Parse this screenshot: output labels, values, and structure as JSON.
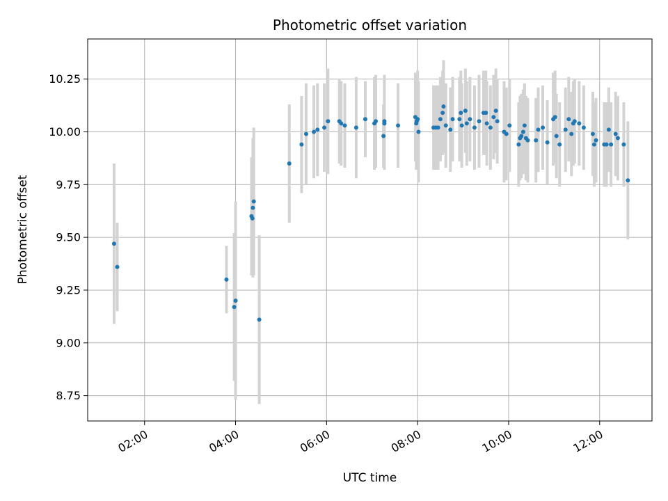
{
  "chart_data": {
    "type": "scatter",
    "title": "Photometric offset variation",
    "xlabel": "UTC time",
    "ylabel": "Photometric offset",
    "x_unit": "hours",
    "xlim": [
      0.75,
      13.15
    ],
    "ylim": [
      8.63,
      10.44
    ],
    "x_ticks": [
      2,
      4,
      6,
      8,
      10,
      12
    ],
    "x_tick_labels": [
      "02:00",
      "04:00",
      "06:00",
      "08:00",
      "10:00",
      "12:00"
    ],
    "y_ticks": [
      8.75,
      9.0,
      9.25,
      9.5,
      9.75,
      10.0,
      10.25
    ],
    "y_tick_labels": [
      "8.75",
      "9.00",
      "9.25",
      "9.50",
      "9.75",
      "10.00",
      "10.25"
    ],
    "grid": true,
    "colors": {
      "point": "#1f77b4",
      "errorbar": "#d3d3d3",
      "grid": "#b0b0b0",
      "axes": "#000000"
    },
    "points": [
      [
        1.33,
        9.47,
        0.38
      ],
      [
        1.4,
        9.36,
        0.21
      ],
      [
        3.8,
        9.3,
        0.16
      ],
      [
        3.97,
        9.17,
        0.35
      ],
      [
        4.0,
        9.2,
        0.47
      ],
      [
        4.35,
        9.6,
        0.28
      ],
      [
        4.37,
        9.59,
        0.26
      ],
      [
        4.38,
        9.64,
        0.33
      ],
      [
        4.4,
        9.67,
        0.35
      ],
      [
        4.52,
        9.11,
        0.4
      ],
      [
        5.18,
        9.85,
        0.28
      ],
      [
        5.45,
        9.94,
        0.23
      ],
      [
        5.55,
        9.99,
        0.24
      ],
      [
        5.72,
        10.0,
        0.22
      ],
      [
        5.8,
        10.01,
        0.22
      ],
      [
        5.95,
        10.02,
        0.21
      ],
      [
        6.03,
        10.05,
        0.25
      ],
      [
        6.28,
        10.05,
        0.2
      ],
      [
        6.32,
        10.04,
        0.2
      ],
      [
        6.4,
        10.03,
        0.2
      ],
      [
        6.65,
        10.02,
        0.24
      ],
      [
        6.85,
        10.06,
        0.18
      ],
      [
        7.05,
        10.04,
        0.22
      ],
      [
        7.08,
        10.05,
        0.22
      ],
      [
        7.25,
        9.98,
        0.15
      ],
      [
        7.27,
        10.05,
        0.22
      ],
      [
        7.27,
        10.04,
        0.22
      ],
      [
        7.57,
        10.03,
        0.2
      ],
      [
        7.95,
        10.07,
        0.21
      ],
      [
        7.97,
        10.04,
        0.22
      ],
      [
        7.98,
        10.05,
        0.22
      ],
      [
        8.0,
        10.06,
        0.23
      ],
      [
        8.02,
        10.0,
        0.24
      ],
      [
        8.35,
        10.02,
        0.2
      ],
      [
        8.4,
        10.02,
        0.2
      ],
      [
        8.45,
        10.02,
        0.2
      ],
      [
        8.5,
        10.06,
        0.2
      ],
      [
        8.55,
        10.09,
        0.2
      ],
      [
        8.57,
        10.12,
        0.22
      ],
      [
        8.62,
        10.03,
        0.2
      ],
      [
        8.72,
        10.01,
        0.2
      ],
      [
        8.77,
        10.06,
        0.2
      ],
      [
        8.92,
        10.06,
        0.2
      ],
      [
        8.95,
        10.09,
        0.2
      ],
      [
        8.97,
        10.03,
        0.2
      ],
      [
        9.05,
        10.1,
        0.2
      ],
      [
        9.08,
        10.04,
        0.2
      ],
      [
        9.15,
        10.06,
        0.2
      ],
      [
        9.25,
        10.02,
        0.2
      ],
      [
        9.35,
        10.05,
        0.22
      ],
      [
        9.45,
        10.09,
        0.2
      ],
      [
        9.5,
        10.09,
        0.2
      ],
      [
        9.52,
        10.04,
        0.2
      ],
      [
        9.6,
        10.02,
        0.2
      ],
      [
        9.67,
        10.07,
        0.2
      ],
      [
        9.72,
        10.1,
        0.2
      ],
      [
        9.75,
        10.05,
        0.2
      ],
      [
        9.9,
        10.0,
        0.24
      ],
      [
        9.95,
        9.99,
        0.22
      ],
      [
        10.02,
        10.03,
        0.22
      ],
      [
        10.22,
        9.94,
        0.2
      ],
      [
        10.25,
        9.97,
        0.2
      ],
      [
        10.28,
        9.98,
        0.2
      ],
      [
        10.32,
        10.0,
        0.2
      ],
      [
        10.35,
        10.03,
        0.2
      ],
      [
        10.38,
        9.97,
        0.2
      ],
      [
        10.42,
        9.96,
        0.2
      ],
      [
        10.6,
        9.96,
        0.2
      ],
      [
        10.65,
        10.01,
        0.2
      ],
      [
        10.75,
        10.02,
        0.2
      ],
      [
        10.85,
        9.95,
        0.2
      ],
      [
        10.98,
        10.06,
        0.22
      ],
      [
        11.02,
        10.07,
        0.22
      ],
      [
        11.05,
        9.98,
        0.2
      ],
      [
        11.12,
        9.94,
        0.2
      ],
      [
        11.25,
        10.01,
        0.2
      ],
      [
        11.32,
        10.06,
        0.2
      ],
      [
        11.38,
        9.99,
        0.2
      ],
      [
        11.42,
        10.04,
        0.2
      ],
      [
        11.45,
        10.05,
        0.2
      ],
      [
        11.55,
        10.04,
        0.2
      ],
      [
        11.65,
        10.02,
        0.2
      ],
      [
        11.85,
        9.99,
        0.2
      ],
      [
        11.88,
        9.94,
        0.2
      ],
      [
        11.92,
        9.96,
        0.2
      ],
      [
        12.1,
        9.94,
        0.2
      ],
      [
        12.15,
        9.94,
        0.2
      ],
      [
        12.2,
        10.01,
        0.2
      ],
      [
        12.25,
        9.94,
        0.2
      ],
      [
        12.35,
        9.99,
        0.2
      ],
      [
        12.4,
        9.97,
        0.2
      ],
      [
        12.53,
        9.94,
        0.2
      ],
      [
        12.62,
        9.77,
        0.28
      ]
    ]
  }
}
